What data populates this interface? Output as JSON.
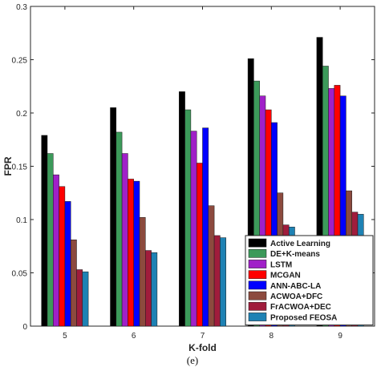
{
  "chart_data": {
    "type": "bar",
    "xlabel": "K-fold",
    "ylabel": "FPR",
    "ylim": [
      0,
      0.3
    ],
    "yticks": [
      "0",
      "0.05",
      "0.1",
      "0.15",
      "0.2",
      "0.25",
      "0.3"
    ],
    "categories": [
      "5",
      "6",
      "7",
      "8",
      "9"
    ],
    "legend_position": "bottom-right",
    "grid": false,
    "series": [
      {
        "name": "Active Learning",
        "color": "#000000",
        "values": [
          0.179,
          0.205,
          0.22,
          0.251,
          0.271
        ]
      },
      {
        "name": "DE+K-means",
        "color": "#3c9a5a",
        "values": [
          0.162,
          0.182,
          0.203,
          0.23,
          0.244
        ]
      },
      {
        "name": "LSTM",
        "color": "#a020c8",
        "values": [
          0.142,
          0.162,
          0.183,
          0.216,
          0.223
        ]
      },
      {
        "name": "MCGAN",
        "color": "#ff0000",
        "values": [
          0.131,
          0.138,
          0.153,
          0.203,
          0.226
        ]
      },
      {
        "name": "ANN-ABC-LA",
        "color": "#0000ff",
        "values": [
          0.117,
          0.136,
          0.186,
          0.191,
          0.216
        ]
      },
      {
        "name": "ACWOA+DFC",
        "color": "#8c4a3e",
        "values": [
          0.081,
          0.102,
          0.113,
          0.125,
          0.127
        ]
      },
      {
        "name": "FrACWOA+DEC",
        "color": "#a01c3c",
        "values": [
          0.053,
          0.071,
          0.085,
          0.095,
          0.107
        ]
      },
      {
        "name": "Proposed FEOSA",
        "color": "#1e82b4",
        "values": [
          0.051,
          0.069,
          0.083,
          0.093,
          0.105
        ]
      }
    ]
  },
  "caption": "(e)"
}
